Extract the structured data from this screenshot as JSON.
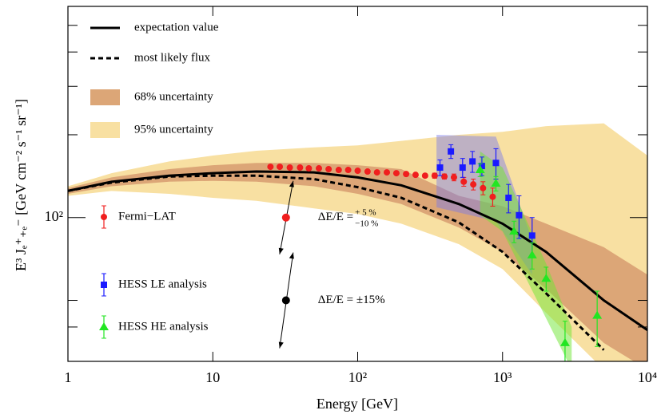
{
  "chart_data": {
    "type": "line",
    "x_label": "Energy [GeV]",
    "y_label": "E³ Jₑ⁺₊ₑ⁻ [GeV cm⁻² s⁻¹ sr⁻¹]",
    "xlog": true,
    "ylog": true,
    "xlim": [
      1,
      10000
    ],
    "ylim": [
      30,
      586
    ],
    "xticks": [
      {
        "value": 1,
        "label": "1"
      },
      {
        "value": 10,
        "label": "10"
      },
      {
        "value": 100,
        "label": "10²"
      },
      {
        "value": 1000,
        "label": "10³"
      },
      {
        "value": 10000,
        "label": "10⁴"
      }
    ],
    "yticks": [
      {
        "value": 100,
        "label": "10²"
      }
    ],
    "yminor": [
      40,
      50,
      200,
      300,
      400,
      500
    ],
    "x": [
      1,
      2,
      5,
      10,
      20,
      50,
      100,
      200,
      500,
      1000,
      2000,
      5000,
      10000
    ],
    "bands": [
      {
        "name": "95% uncertainty",
        "color": "#f8e0a2",
        "upper": [
          130,
          145,
          160,
          168,
          175,
          180,
          183,
          190,
          200,
          205,
          215,
          220,
          168
        ],
        "lower": [
          120,
          125,
          122,
          118,
          115,
          108,
          103,
          95,
          80,
          65,
          45,
          28,
          20
        ]
      },
      {
        "name": "68% uncertainty",
        "color": "#dca677",
        "upper": [
          128,
          140,
          150,
          155,
          158,
          158,
          155,
          150,
          120,
          110,
          95,
          78,
          62
        ],
        "lower": [
          122,
          130,
          135,
          136,
          135,
          130,
          122,
          112,
          92,
          75,
          55,
          35,
          28
        ]
      }
    ],
    "series": [
      {
        "name": "expectation value",
        "color": "#000000",
        "dash": false,
        "values": [
          125,
          135,
          142,
          145,
          147,
          146,
          140,
          131,
          112,
          95,
          75,
          50,
          39
        ]
      },
      {
        "name": "most likely flux",
        "color": "#000000",
        "dash": true,
        "values": [
          125,
          134,
          141,
          142,
          142,
          138,
          129,
          118,
          96,
          75,
          53,
          33,
          null
        ]
      }
    ],
    "detector_bands": [
      {
        "color": "rgba(120,120,235,0.45)",
        "x": [
          350,
          900,
          1600
        ],
        "upper": [
          200,
          197,
          83
        ],
        "lower": [
          109,
          97,
          62
        ]
      },
      {
        "color": "rgba(110,230,50,0.5)",
        "x": [
          700,
          1000,
          2000,
          3000
        ],
        "upper": [
          174,
          152,
          68,
          40
        ],
        "lower": [
          102,
          89,
          43,
          28
        ]
      }
    ],
    "points": [
      {
        "name": "Fermi−LAT",
        "color": "#f01e1e",
        "marker": "circle",
        "x": [
          25,
          29,
          34,
          40,
          46,
          54,
          63,
          74,
          86,
          100,
          117,
          136,
          159,
          185,
          216,
          251,
          292,
          340,
          397,
          462,
          540,
          628,
          733,
          855
        ],
        "values": [
          153,
          153,
          152,
          152,
          151,
          151,
          150,
          149,
          149,
          148,
          147,
          146,
          146,
          145,
          144,
          143,
          142,
          142,
          141,
          140,
          135,
          132,
          128,
          119
        ],
        "errors": [
          1,
          1,
          1,
          1,
          1,
          1,
          1,
          1,
          1,
          1,
          1,
          1,
          1,
          1,
          2,
          2,
          2,
          3,
          3,
          4,
          5,
          6,
          7,
          9
        ]
      },
      {
        "name": "HESS LE analysis",
        "color": "#1a1aff",
        "marker": "square",
        "x": [
          370,
          440,
          530,
          620,
          720,
          900,
          1100,
          1300,
          1600
        ],
        "values": [
          152,
          174,
          152,
          160,
          154,
          158,
          118,
          102,
          86
        ],
        "errors": [
          10,
          10,
          12,
          14,
          12,
          20,
          14,
          18,
          14
        ]
      },
      {
        "name": "HESS HE analysis",
        "color": "#22e622",
        "marker": "triangle",
        "x": [
          700,
          900,
          1200,
          1600,
          2000,
          2700,
          4500
        ],
        "values": [
          149,
          133,
          89,
          73,
          60,
          35,
          44
        ],
        "errors": [
          8,
          8,
          8,
          8,
          6,
          7,
          10
        ]
      }
    ],
    "annotations": [
      {
        "text": "ΔE/E = ",
        "sup": "+ 5 %",
        "sub": "−10 %",
        "x": 32,
        "y": 100
      },
      {
        "text": "ΔE/E = ±15%",
        "x": 32,
        "y": 50
      }
    ]
  }
}
